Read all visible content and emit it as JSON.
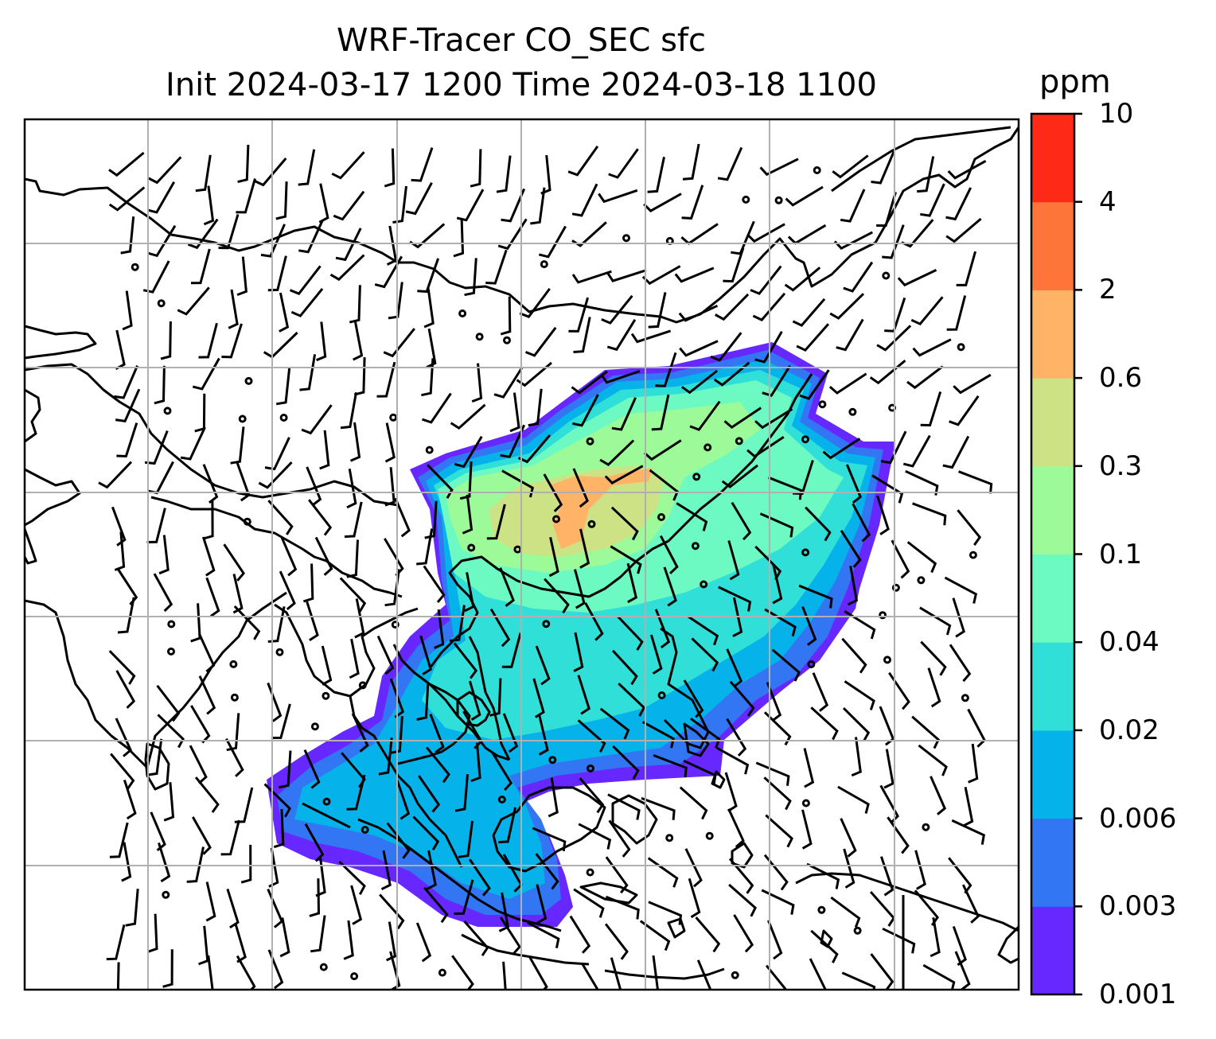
{
  "title": {
    "line1": "WRF-Tracer CO_SEC sfc",
    "line2": "Init 2024-03-17 1200 Time 2024-03-18 1100"
  },
  "colorbar": {
    "unit": "ppm",
    "ticks": [
      "0.001",
      "0.003",
      "0.006",
      "0.02",
      "0.04",
      "0.1",
      "0.3",
      "0.6",
      "2",
      "4",
      "10"
    ],
    "colors": [
      "#6628ff",
      "#3276f3",
      "#05b3ea",
      "#30e0d8",
      "#6cfac2",
      "#9dfa98",
      "#cde185",
      "#feb366",
      "#fe7539",
      "#ff2918"
    ]
  },
  "map": {
    "field": "CO_SEC tracer concentration (filled contours)",
    "overlay": "wind barbs",
    "gridlines": true
  }
}
